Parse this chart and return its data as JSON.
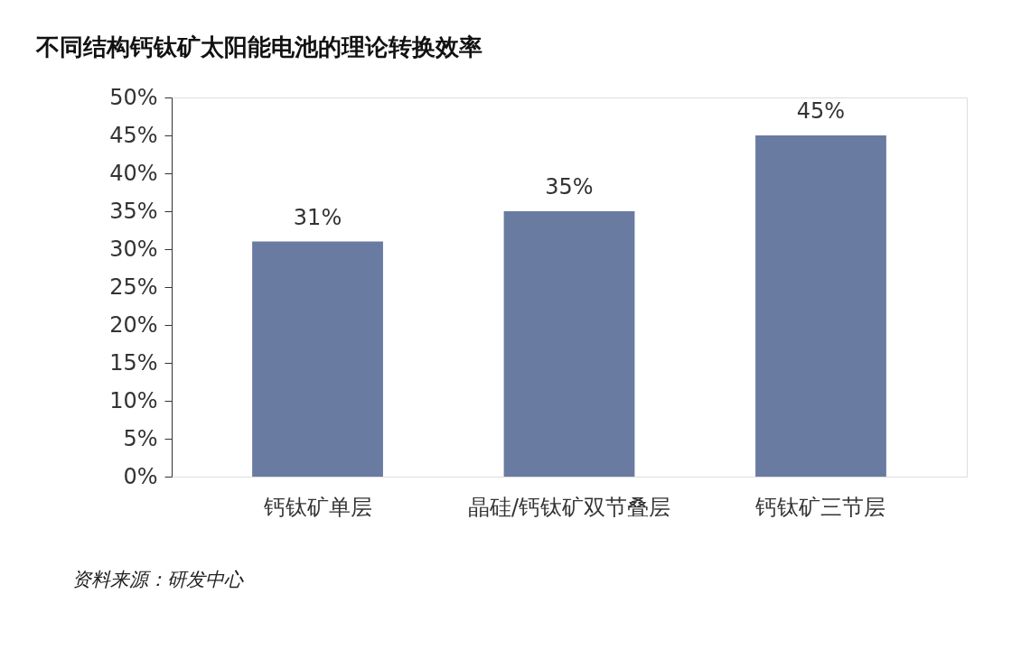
{
  "chart_data": {
    "type": "bar",
    "title": "不同结构钙钛矿太阳能电池的理论转换效率",
    "categories": [
      "钙钛矿单层",
      "晶硅/钙钛矿双节叠层",
      "钙钛矿三节层"
    ],
    "values": [
      31,
      35,
      45
    ],
    "value_labels": [
      "31%",
      "35%",
      "45%"
    ],
    "color": "#6a7ba2",
    "ylim": [
      0,
      50
    ],
    "yticks": [
      {
        "value": 0,
        "label": "0%"
      },
      {
        "value": 5,
        "label": "5%"
      },
      {
        "value": 10,
        "label": "10%"
      },
      {
        "value": 15,
        "label": "15%"
      },
      {
        "value": 20,
        "label": "20%"
      },
      {
        "value": 25,
        "label": "25%"
      },
      {
        "value": 30,
        "label": "30%"
      },
      {
        "value": 35,
        "label": "35%"
      },
      {
        "value": 40,
        "label": "40%"
      },
      {
        "value": 45,
        "label": "45%"
      },
      {
        "value": 50,
        "label": "50%"
      }
    ],
    "grid": false,
    "annotations": [
      "资料来源：研发中心"
    ]
  }
}
